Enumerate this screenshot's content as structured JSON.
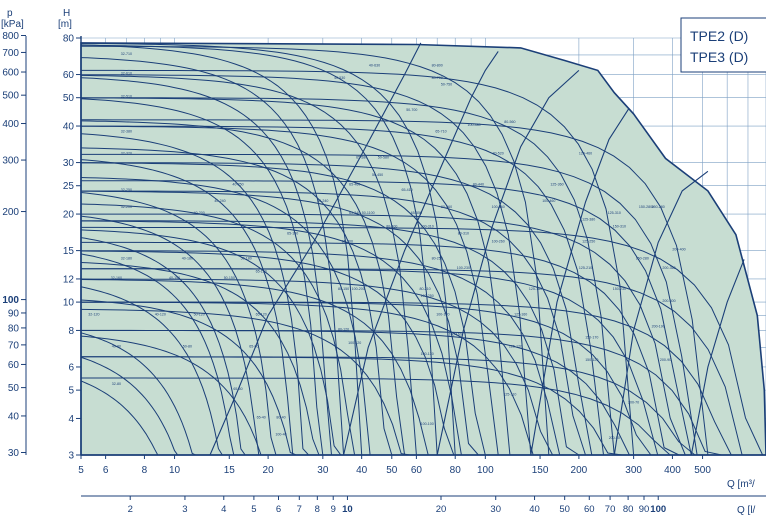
{
  "chart_data": {
    "type": "area",
    "title": "",
    "badge_lines": [
      "TPE2 (D)",
      "TPE3 (D)"
    ],
    "left_unit_p": "p",
    "left_unit_p2": "[kPa]",
    "left_unit_h": "H",
    "left_unit_h2": "[m]",
    "x_unit_label": "Q [m³/",
    "x2_unit_label": "Q [l/",
    "x_log": true,
    "y_log": true,
    "xlim": [
      5,
      800
    ],
    "ylim": [
      3,
      80
    ],
    "grid": true,
    "x_ticks": [
      5,
      6,
      8,
      10,
      15,
      20,
      30,
      40,
      50,
      60,
      80,
      100,
      150,
      200,
      300,
      400,
      500
    ],
    "x2_ticks": [
      2,
      3,
      4,
      5,
      6,
      7,
      8,
      9,
      10,
      20,
      30,
      40,
      50,
      60,
      70,
      80,
      90,
      100
    ],
    "x2_bold": [
      10,
      100
    ],
    "y_ticks_h": [
      3,
      4,
      5,
      6,
      8,
      10,
      12,
      15,
      20,
      25,
      30,
      40,
      50,
      60,
      80
    ],
    "y_ticks_p": [
      {
        "label": "30",
        "h": 3.06
      },
      {
        "label": "40",
        "h": 4.08
      },
      {
        "label": "50",
        "h": 5.1
      },
      {
        "label": "60",
        "h": 6.12
      },
      {
        "label": "70",
        "h": 7.14
      },
      {
        "label": "80",
        "h": 8.16
      },
      {
        "label": "90",
        "h": 9.18
      },
      {
        "label": "100",
        "h": 10.2
      },
      {
        "label": "200",
        "h": 20.4
      },
      {
        "label": "300",
        "h": 30.6
      },
      {
        "label": "400",
        "h": 40.8
      },
      {
        "label": "500",
        "h": 51
      },
      {
        "label": "600",
        "h": 61.2
      },
      {
        "label": "700",
        "h": 71.4
      },
      {
        "label": "800",
        "h": 81.6
      }
    ],
    "envelope": [
      [
        5,
        3
      ],
      [
        5,
        77
      ],
      [
        60,
        76
      ],
      [
        130,
        74
      ],
      [
        180,
        67
      ],
      [
        230,
        62
      ],
      [
        260,
        52
      ],
      [
        300,
        44
      ],
      [
        380,
        31
      ],
      [
        520,
        24
      ],
      [
        640,
        17
      ],
      [
        750,
        9
      ],
      [
        790,
        5
      ],
      [
        800,
        3
      ]
    ],
    "max_curves": [
      {
        "h0": 77,
        "qmax": 40
      },
      {
        "h0": 70,
        "qmax": 35
      },
      {
        "h0": 60,
        "qmax": 32
      },
      {
        "h0": 51,
        "qmax": 30
      },
      {
        "h0": 39,
        "qmax": 27
      },
      {
        "h0": 32,
        "qmax": 25
      },
      {
        "h0": 25,
        "qmax": 22
      },
      {
        "h0": 21,
        "qmax": 20
      },
      {
        "h0": 18,
        "qmax": 18
      },
      {
        "h0": 16,
        "qmax": 17
      },
      {
        "h0": 12.5,
        "qmax": 16
      },
      {
        "h0": 9,
        "qmax": 14
      },
      {
        "h0": 7.6,
        "qmax": 13
      },
      {
        "h0": 6.5,
        "qmax": 12
      },
      {
        "h0": 77,
        "qmax": 80
      },
      {
        "h0": 76,
        "qmax": 70
      },
      {
        "h0": 60,
        "qmax": 60
      },
      {
        "h0": 42,
        "qmax": 55
      },
      {
        "h0": 34,
        "qmax": 50
      },
      {
        "h0": 27,
        "qmax": 45
      },
      {
        "h0": 22,
        "qmax": 40
      },
      {
        "h0": 18,
        "qmax": 36
      },
      {
        "h0": 14,
        "qmax": 32
      },
      {
        "h0": 10.5,
        "qmax": 28
      },
      {
        "h0": 8,
        "qmax": 24
      },
      {
        "h0": 75,
        "qmax": 160
      },
      {
        "h0": 60,
        "qmax": 140
      },
      {
        "h0": 50,
        "qmax": 120
      },
      {
        "h0": 40,
        "qmax": 110
      },
      {
        "h0": 30,
        "qmax": 100
      },
      {
        "h0": 24,
        "qmax": 95
      },
      {
        "h0": 19,
        "qmax": 90
      },
      {
        "h0": 15,
        "qmax": 85
      },
      {
        "h0": 12,
        "qmax": 75
      },
      {
        "h0": 9.5,
        "qmax": 65
      },
      {
        "h0": 62,
        "qmax": 300
      },
      {
        "h0": 50,
        "qmax": 260
      },
      {
        "h0": 40,
        "qmax": 240
      },
      {
        "h0": 30,
        "qmax": 220
      },
      {
        "h0": 24,
        "qmax": 210
      },
      {
        "h0": 19,
        "qmax": 200
      },
      {
        "h0": 15,
        "qmax": 190
      },
      {
        "h0": 12,
        "qmax": 180
      },
      {
        "h0": 10,
        "qmax": 170
      },
      {
        "h0": 42,
        "qmax": 520
      },
      {
        "h0": 32,
        "qmax": 480
      },
      {
        "h0": 26,
        "qmax": 460
      },
      {
        "h0": 20,
        "qmax": 440
      },
      {
        "h0": 16,
        "qmax": 420
      },
      {
        "h0": 13,
        "qmax": 400
      },
      {
        "h0": 10,
        "qmax": 380
      },
      {
        "h0": 8,
        "qmax": 360
      },
      {
        "h0": 6.5,
        "qmax": 340
      },
      {
        "h0": 18,
        "qmax": 780
      },
      {
        "h0": 13,
        "qmax": 760
      },
      {
        "h0": 10,
        "qmax": 700
      },
      {
        "h0": 8,
        "qmax": 650
      },
      {
        "h0": 6.5,
        "qmax": 600
      },
      {
        "h0": 5.5,
        "qmax": 560
      }
    ],
    "partitions": [
      [
        [
          13,
          3
        ],
        [
          16,
          5
        ],
        [
          20,
          9
        ],
        [
          28,
          16
        ],
        [
          40,
          32
        ],
        [
          55,
          60
        ],
        [
          62,
          77
        ]
      ],
      [
        [
          35,
          3
        ],
        [
          42,
          7
        ],
        [
          55,
          15
        ],
        [
          75,
          32
        ],
        [
          90,
          50
        ],
        [
          100,
          62
        ],
        [
          110,
          72
        ]
      ],
      [
        [
          70,
          3
        ],
        [
          85,
          8
        ],
        [
          105,
          18
        ],
        [
          130,
          34
        ],
        [
          160,
          50
        ],
        [
          200,
          62
        ]
      ],
      [
        [
          140,
          3
        ],
        [
          170,
          10
        ],
        [
          210,
          22
        ],
        [
          250,
          36
        ],
        [
          290,
          46
        ]
      ],
      [
        [
          260,
          3
        ],
        [
          300,
          8
        ],
        [
          360,
          16
        ],
        [
          430,
          24
        ],
        [
          520,
          28
        ]
      ],
      [
        [
          460,
          3
        ],
        [
          520,
          6
        ],
        [
          600,
          10
        ],
        [
          680,
          14
        ]
      ]
    ],
    "models": [
      {
        "name": "32-710",
        "q": 7,
        "h": 70
      },
      {
        "name": "32-610",
        "q": 7,
        "h": 60
      },
      {
        "name": "32-510",
        "q": 7,
        "h": 50
      },
      {
        "name": "32-380",
        "q": 7,
        "h": 38
      },
      {
        "name": "32-320",
        "q": 7,
        "h": 32
      },
      {
        "name": "32-250",
        "q": 7,
        "h": 24
      },
      {
        "name": "32-200",
        "q": 7,
        "h": 21
      },
      {
        "name": "32-180",
        "q": 7,
        "h": 14
      },
      {
        "name": "32-160",
        "q": 6.5,
        "h": 12
      },
      {
        "name": "32-120",
        "q": 5.5,
        "h": 9
      },
      {
        "name": "40-80",
        "q": 6.5,
        "h": 7
      },
      {
        "name": "32-80",
        "q": 6.5,
        "h": 5.2
      },
      {
        "name": "40-630",
        "q": 44,
        "h": 64
      },
      {
        "name": "40-530",
        "q": 34,
        "h": 58
      },
      {
        "name": "40-250",
        "q": 16,
        "h": 25
      },
      {
        "name": "40-200",
        "q": 12,
        "h": 20
      },
      {
        "name": "40-180",
        "q": 11,
        "h": 14
      },
      {
        "name": "40-150",
        "q": 10,
        "h": 12
      },
      {
        "name": "40-120",
        "q": 9,
        "h": 9
      },
      {
        "name": "40-240",
        "q": 14,
        "h": 22
      },
      {
        "name": "50-450",
        "q": 45,
        "h": 27
      },
      {
        "name": "50-240",
        "q": 30,
        "h": 22
      },
      {
        "name": "50-180",
        "q": 17,
        "h": 14
      },
      {
        "name": "50-150",
        "q": 15,
        "h": 12
      },
      {
        "name": "50-120",
        "q": 12,
        "h": 9
      },
      {
        "name": "50-80",
        "q": 11,
        "h": 7
      },
      {
        "name": "50-700",
        "q": 58,
        "h": 45
      },
      {
        "name": "50-750",
        "q": 75,
        "h": 55
      },
      {
        "name": "50-1100",
        "q": 42,
        "h": 20
      },
      {
        "name": "50-580",
        "q": 47,
        "h": 31
      },
      {
        "name": "65-150",
        "q": 19,
        "h": 12.6
      },
      {
        "name": "65-180",
        "q": 24,
        "h": 17
      },
      {
        "name": "65-120",
        "q": 19,
        "h": 9
      },
      {
        "name": "65-80",
        "q": 18,
        "h": 7
      },
      {
        "name": "65-200",
        "q": 36,
        "h": 16
      },
      {
        "name": "65-460",
        "q": 38,
        "h": 25
      },
      {
        "name": "65-580",
        "q": 40,
        "h": 31
      },
      {
        "name": "65-410",
        "q": 56,
        "h": 24
      },
      {
        "name": "65-710",
        "q": 72,
        "h": 38
      },
      {
        "name": "65-550",
        "q": 60,
        "h": 20
      },
      {
        "name": "65-340",
        "q": 38,
        "h": 20
      },
      {
        "name": "65-60",
        "q": 16,
        "h": 5
      },
      {
        "name": "65-40",
        "q": 19,
        "h": 4
      },
      {
        "name": "80-150",
        "q": 35,
        "h": 11
      },
      {
        "name": "80-120",
        "q": 35,
        "h": 8
      },
      {
        "name": "80-40",
        "q": 22,
        "h": 4
      },
      {
        "name": "80-400",
        "q": 50,
        "h": 18
      },
      {
        "name": "80-250",
        "q": 70,
        "h": 14
      },
      {
        "name": "80-210",
        "q": 64,
        "h": 11
      },
      {
        "name": "80-310",
        "q": 85,
        "h": 17
      },
      {
        "name": "80-440",
        "q": 95,
        "h": 25
      },
      {
        "name": "80-520",
        "q": 110,
        "h": 32
      },
      {
        "name": "80-560",
        "q": 120,
        "h": 41
      },
      {
        "name": "80-700",
        "q": 70,
        "h": 58
      },
      {
        "name": "80-800",
        "q": 70,
        "h": 64
      },
      {
        "name": "80-260",
        "q": 75,
        "h": 21
      },
      {
        "name": "100-200",
        "q": 39,
        "h": 11
      },
      {
        "name": "100-120",
        "q": 38,
        "h": 7.2
      },
      {
        "name": "100-40",
        "q": 22,
        "h": 3.5
      },
      {
        "name": "100-250",
        "q": 65,
        "h": 10.4
      },
      {
        "name": "100-170",
        "q": 73,
        "h": 9
      },
      {
        "name": "100-160",
        "q": 80,
        "h": 7.7
      },
      {
        "name": "100-130",
        "q": 65,
        "h": 6.6
      },
      {
        "name": "100-100",
        "q": 65,
        "h": 3.8
      },
      {
        "name": "100-230",
        "q": 85,
        "h": 13
      },
      {
        "name": "100-260",
        "q": 110,
        "h": 16
      },
      {
        "name": "100-360",
        "q": 110,
        "h": 21
      },
      {
        "name": "100-460",
        "q": 160,
        "h": 22
      },
      {
        "name": "100-310",
        "q": 65,
        "h": 18
      },
      {
        "name": "100-480",
        "q": 92,
        "h": 40
      },
      {
        "name": "125-460",
        "q": 210,
        "h": 32
      },
      {
        "name": "125-360",
        "q": 170,
        "h": 25
      },
      {
        "name": "125-180",
        "q": 145,
        "h": 11
      },
      {
        "name": "125-160",
        "q": 130,
        "h": 9
      },
      {
        "name": "125-120",
        "q": 125,
        "h": 7
      },
      {
        "name": "125-110",
        "q": 120,
        "h": 4.8
      },
      {
        "name": "125-210",
        "q": 210,
        "h": 13
      },
      {
        "name": "125-250",
        "q": 215,
        "h": 16
      },
      {
        "name": "125-380",
        "q": 215,
        "h": 19
      },
      {
        "name": "125-310",
        "q": 260,
        "h": 20
      },
      {
        "name": "150-170",
        "q": 220,
        "h": 7.5
      },
      {
        "name": "150-120",
        "q": 220,
        "h": 6.3
      },
      {
        "name": "150-230",
        "q": 270,
        "h": 11
      },
      {
        "name": "150-280",
        "q": 320,
        "h": 14
      },
      {
        "name": "150-310",
        "q": 270,
        "h": 18
      },
      {
        "name": "150-280b",
        "q": 330,
        "h": 21
      },
      {
        "name": "200-400",
        "q": 420,
        "h": 15
      },
      {
        "name": "200-360",
        "q": 390,
        "h": 13
      },
      {
        "name": "200-300",
        "q": 390,
        "h": 10
      },
      {
        "name": "200-190",
        "q": 360,
        "h": 8.2
      },
      {
        "name": "200-90",
        "q": 380,
        "h": 6.3
      },
      {
        "name": "200-70",
        "q": 300,
        "h": 4.5
      },
      {
        "name": "200-50",
        "q": 260,
        "h": 3.4
      },
      {
        "name": "250-280",
        "q": 360,
        "h": 21
      }
    ]
  }
}
